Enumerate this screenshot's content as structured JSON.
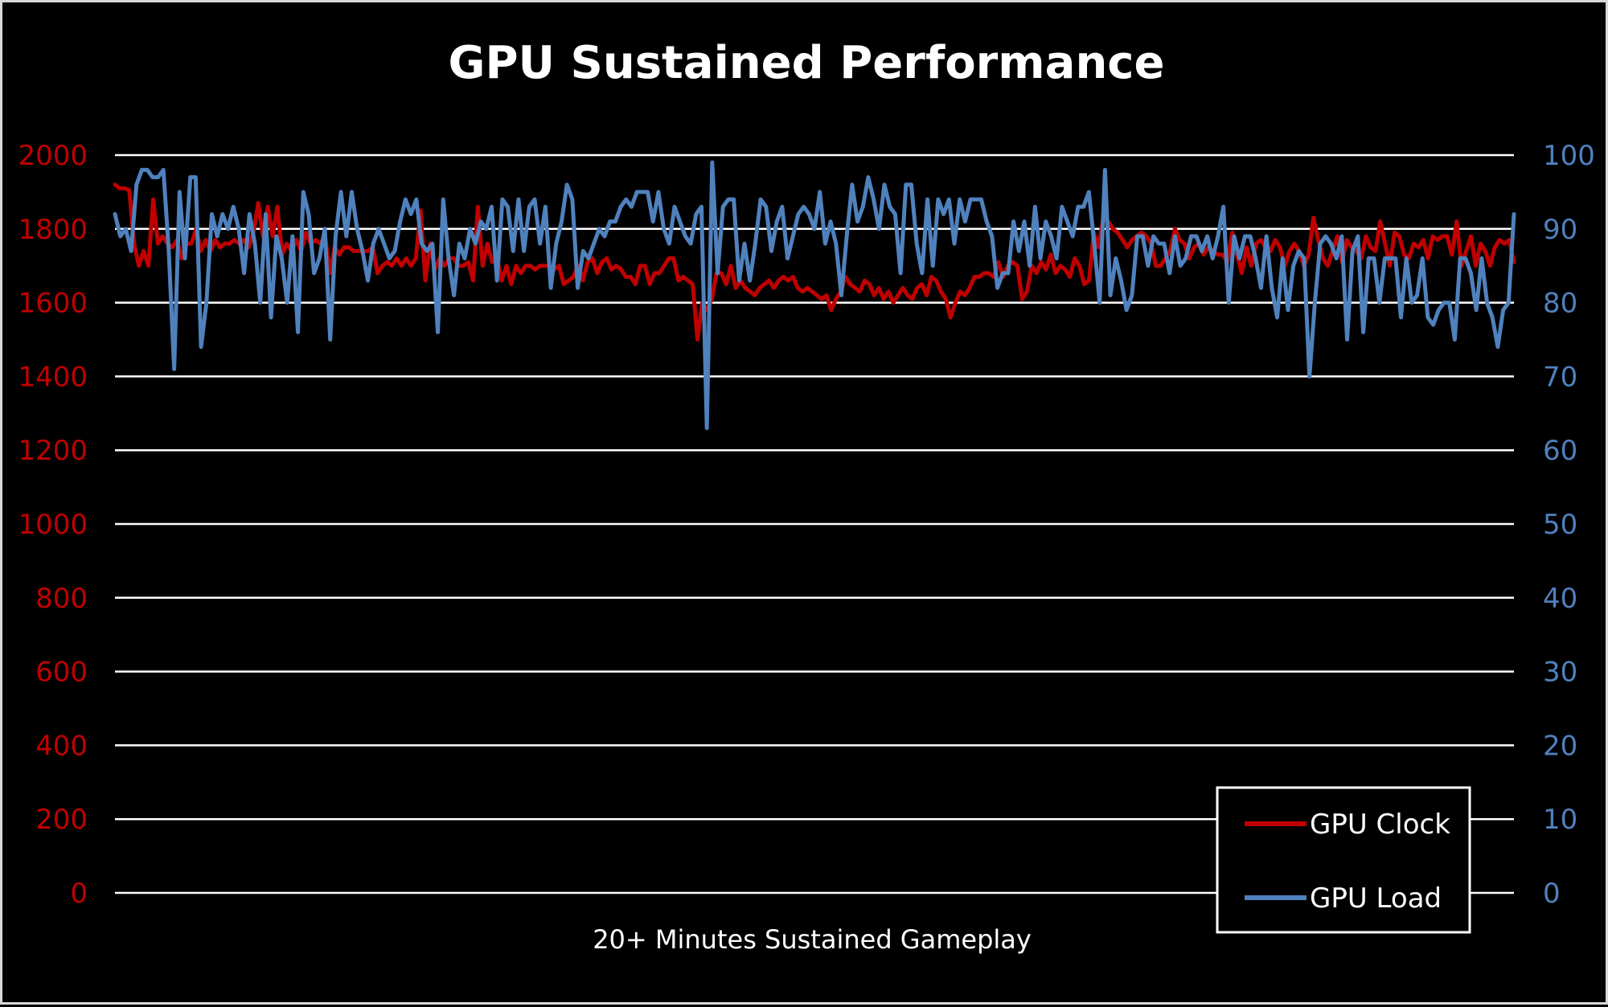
{
  "chart_data": {
    "type": "line",
    "title": "GPU Sustained Performance",
    "xlabel": "20+ Minutes Sustained Gameplay",
    "ylabel": "",
    "ylabel_right": "",
    "ylim": [
      0,
      2000
    ],
    "ylim_right": [
      0,
      100
    ],
    "yticks": [
      0,
      200,
      400,
      600,
      800,
      1000,
      1200,
      1400,
      1600,
      1800,
      2000
    ],
    "yticks_right": [
      0,
      10,
      20,
      30,
      40,
      50,
      60,
      70,
      80,
      90,
      100
    ],
    "grid": true,
    "legend_position": "bottom-right",
    "colors": {
      "background": "#000000",
      "gridline": "#ffffff",
      "left_axis": "#c00000",
      "right_axis": "#4f81bd"
    },
    "series": [
      {
        "name": "GPU Clock",
        "axis": "left",
        "color": "#c00000",
        "values": [
          1920,
          1910,
          1910,
          1905,
          1760,
          1700,
          1740,
          1700,
          1880,
          1760,
          1780,
          1760,
          1750,
          1770,
          1720,
          1760,
          1760,
          1800,
          1740,
          1770,
          1740,
          1770,
          1750,
          1760,
          1760,
          1770,
          1760,
          1770,
          1750,
          1790,
          1870,
          1780,
          1860,
          1780,
          1860,
          1730,
          1760,
          1740,
          1770,
          1740,
          1790,
          1760,
          1770,
          1760,
          1780,
          1680,
          1750,
          1730,
          1750,
          1750,
          1740,
          1740,
          1740,
          1740,
          1750,
          1680,
          1700,
          1710,
          1700,
          1720,
          1700,
          1720,
          1700,
          1720,
          1850,
          1660,
          1760,
          1690,
          1720,
          1700,
          1720,
          1720,
          1700,
          1700,
          1710,
          1660,
          1860,
          1700,
          1760,
          1710,
          1720,
          1660,
          1700,
          1650,
          1700,
          1680,
          1700,
          1700,
          1690,
          1700,
          1700,
          1700,
          1690,
          1700,
          1650,
          1660,
          1670,
          1700,
          1660,
          1710,
          1720,
          1680,
          1710,
          1720,
          1690,
          1700,
          1690,
          1670,
          1670,
          1650,
          1700,
          1700,
          1650,
          1680,
          1680,
          1700,
          1720,
          1720,
          1660,
          1670,
          1660,
          1650,
          1500,
          1600,
          1580,
          1610,
          1680,
          1680,
          1650,
          1700,
          1640,
          1660,
          1640,
          1630,
          1620,
          1640,
          1650,
          1660,
          1640,
          1660,
          1670,
          1660,
          1670,
          1640,
          1630,
          1640,
          1630,
          1620,
          1610,
          1620,
          1580,
          1610,
          1630,
          1670,
          1650,
          1640,
          1630,
          1660,
          1650,
          1620,
          1640,
          1610,
          1630,
          1600,
          1620,
          1640,
          1620,
          1610,
          1640,
          1650,
          1620,
          1670,
          1660,
          1630,
          1610,
          1560,
          1600,
          1630,
          1620,
          1640,
          1670,
          1670,
          1680,
          1680,
          1670,
          1710,
          1670,
          1700,
          1710,
          1700,
          1610,
          1630,
          1700,
          1680,
          1710,
          1690,
          1730,
          1680,
          1700,
          1690,
          1670,
          1720,
          1700,
          1650,
          1660,
          1790,
          1750,
          1830,
          1820,
          1800,
          1790,
          1770,
          1750,
          1770,
          1780,
          1790,
          1780,
          1760,
          1700,
          1700,
          1720,
          1740,
          1800,
          1770,
          1760,
          1720,
          1750,
          1760,
          1730,
          1750,
          1740,
          1730,
          1730,
          1710,
          1790,
          1730,
          1680,
          1750,
          1700,
          1760,
          1770,
          1750,
          1740,
          1770,
          1750,
          1700,
          1740,
          1760,
          1740,
          1700,
          1730,
          1830,
          1770,
          1720,
          1700,
          1740,
          1780,
          1710,
          1770,
          1750,
          1740,
          1720,
          1780,
          1750,
          1740,
          1820,
          1760,
          1700,
          1790,
          1780,
          1730,
          1720,
          1760,
          1750,
          1770,
          1720,
          1780,
          1770,
          1780,
          1780,
          1730,
          1820,
          1700,
          1740,
          1780,
          1700,
          1760,
          1740,
          1700,
          1750,
          1770,
          1760,
          1770,
          1710
        ]
      },
      {
        "name": "GPU Load",
        "axis": "right",
        "color": "#4f81bd",
        "values": [
          92,
          89,
          90,
          87,
          96,
          98,
          98,
          97,
          97,
          98,
          87,
          71,
          95,
          86,
          97,
          97,
          74,
          80,
          92,
          89,
          92,
          90,
          93,
          90,
          84,
          92,
          88,
          80,
          92,
          78,
          89,
          86,
          80,
          89,
          76,
          95,
          92,
          84,
          86,
          90,
          75,
          89,
          95,
          89,
          95,
          90,
          87,
          83,
          88,
          90,
          88,
          86,
          87,
          91,
          94,
          92,
          94,
          88,
          87,
          88,
          76,
          94,
          86,
          81,
          88,
          86,
          90,
          88,
          91,
          90,
          93,
          83,
          94,
          93,
          87,
          94,
          87,
          93,
          94,
          88,
          93,
          82,
          88,
          91,
          96,
          94,
          82,
          87,
          86,
          88,
          90,
          89,
          91,
          91,
          93,
          94,
          93,
          95,
          95,
          95,
          91,
          95,
          90,
          88,
          93,
          91,
          89,
          88,
          92,
          93,
          63,
          99,
          84,
          93,
          94,
          94,
          83,
          88,
          83,
          88,
          94,
          93,
          87,
          91,
          93,
          86,
          89,
          92,
          93,
          92,
          90,
          95,
          88,
          91,
          88,
          81,
          89,
          96,
          91,
          93,
          97,
          94,
          90,
          96,
          93,
          92,
          84,
          96,
          96,
          88,
          84,
          94,
          85,
          94,
          92,
          94,
          88,
          94,
          91,
          94,
          94,
          94,
          91,
          89,
          82,
          84,
          84,
          91,
          87,
          91,
          85,
          93,
          86,
          91,
          89,
          86,
          93,
          91,
          89,
          93,
          93,
          95,
          88,
          80,
          98,
          81,
          86,
          83,
          79,
          81,
          89,
          89,
          85,
          89,
          88,
          88,
          84,
          89,
          85,
          86,
          89,
          89,
          87,
          89,
          86,
          89,
          93,
          80,
          89,
          86,
          89,
          89,
          86,
          82,
          89,
          82,
          78,
          86,
          79,
          85,
          87,
          86,
          70,
          80,
          88,
          89,
          88,
          86,
          89,
          75,
          87,
          89,
          76,
          86,
          86,
          80,
          86,
          86,
          86,
          78,
          86,
          80,
          81,
          86,
          78,
          77,
          79,
          80,
          80,
          75,
          86,
          86,
          84,
          79,
          86,
          80,
          78,
          74,
          79,
          80,
          92
        ]
      }
    ]
  }
}
